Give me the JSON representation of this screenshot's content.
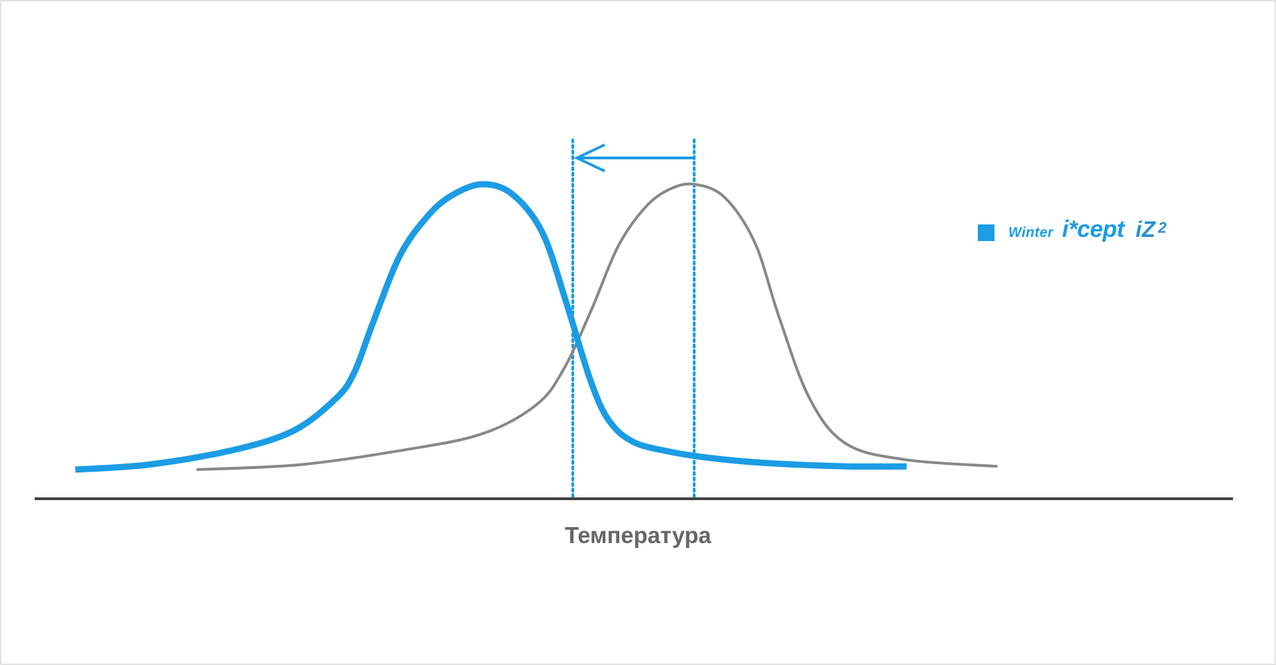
{
  "chart_data": {
    "type": "line",
    "title": "",
    "xlabel": "Температура",
    "ylabel": "",
    "grid": false,
    "legend_placement": "right",
    "legend": {
      "label_parts": [
        "Winter",
        "i*cept",
        "iZ",
        "2"
      ]
    },
    "xlim": [
      -10,
      10
    ],
    "ylim": [
      0,
      1
    ],
    "series": [
      {
        "name": "Winter i*cept iZ2",
        "color": "#1b9ce4",
        "x": [
          -8.2,
          -7.0,
          -5.6,
          -4.6,
          -3.9,
          -3.6,
          -3.3,
          -2.85,
          -2.4,
          -2.0,
          -1.5,
          -1.0,
          -0.5,
          -0.1,
          0.3,
          0.6,
          1.0,
          1.6,
          2.3,
          3.2,
          4.5,
          5.5
        ],
        "y": [
          0.09,
          0.105,
          0.15,
          0.21,
          0.31,
          0.39,
          0.54,
          0.75,
          0.87,
          0.935,
          0.97,
          0.94,
          0.82,
          0.6,
          0.36,
          0.24,
          0.175,
          0.145,
          0.125,
          0.11,
          0.1,
          0.1
        ]
      },
      {
        "name": "",
        "color": "#888888",
        "x": [
          -6.2,
          -4.5,
          -2.8,
          -1.5,
          -0.6,
          -0.15,
          0.3,
          0.75,
          1.2,
          1.6,
          2.0,
          2.5,
          3.0,
          3.4,
          3.9,
          4.5,
          5.5,
          7.0
        ],
        "y": [
          0.09,
          0.105,
          0.15,
          0.2,
          0.29,
          0.4,
          0.58,
          0.78,
          0.9,
          0.955,
          0.97,
          0.93,
          0.79,
          0.56,
          0.31,
          0.17,
          0.12,
          0.1
        ]
      }
    ],
    "reference_lines": [
      {
        "x": 0.0,
        "color": "#1b9ce4",
        "style": "dotted"
      },
      {
        "x": 2.0,
        "color": "#1b9ce4",
        "style": "dotted"
      }
    ],
    "annotations": [
      {
        "type": "arrow",
        "from_x": 2.0,
        "to_x": 0.0,
        "color": "#1b9ce4"
      }
    ]
  }
}
